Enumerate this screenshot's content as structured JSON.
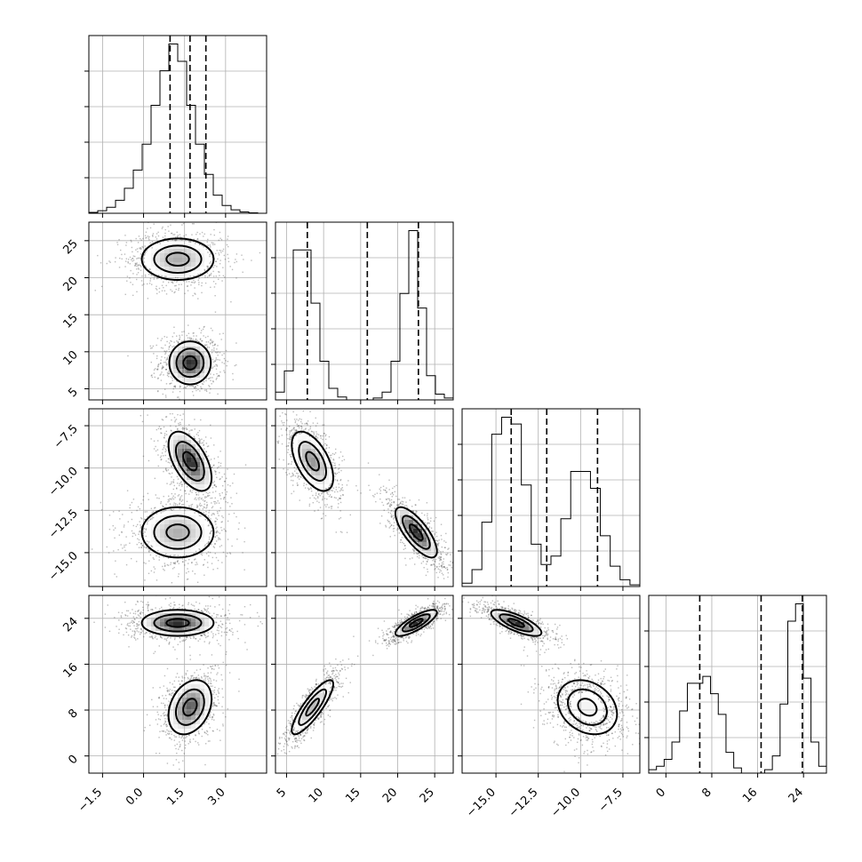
{
  "chart_data": {
    "type": "corner",
    "grid": true,
    "parameters": [
      {
        "range": [
          -2.0,
          4.5
        ],
        "ticks": [
          -1.5,
          0.0,
          1.5,
          3.0
        ],
        "tick_labels": [
          "−1.5",
          "0.0",
          "1.5",
          "3.0"
        ],
        "quantiles": [
          0.97,
          1.7,
          2.28
        ],
        "hist_counts": [
          2,
          6,
          14,
          30,
          58,
          100,
          160,
          250,
          330,
          392,
          352,
          250,
          160,
          90,
          42,
          18,
          8,
          3,
          1,
          0
        ]
      },
      {
        "range": [
          3.5,
          27.5
        ],
        "ticks": [
          5,
          10,
          15,
          20,
          25
        ],
        "tick_labels": [
          "5",
          "10",
          "15",
          "20",
          "25"
        ],
        "quantiles": [
          7.8,
          15.9,
          22.8
        ],
        "hist_counts": [
          8,
          30,
          155,
          155,
          100,
          40,
          12,
          3,
          0,
          0,
          0,
          2,
          8,
          40,
          110,
          175,
          95,
          25,
          6,
          2
        ]
      },
      {
        "range": [
          -17.0,
          -6.5
        ],
        "ticks": [
          -15.0,
          -12.5,
          -10.0,
          -7.5
        ],
        "tick_labels": [
          "−15.0",
          "−12.5",
          "−10.0",
          "−7.5"
        ],
        "quantiles": [
          -14.1,
          -12.0,
          -9.0
        ],
        "hist_counts": [
          2,
          10,
          38,
          90,
          100,
          96,
          60,
          25,
          13,
          18,
          40,
          68,
          68,
          58,
          30,
          12,
          4,
          1
        ]
      },
      {
        "range": [
          -3.0,
          28.0
        ],
        "ticks": [
          0,
          8,
          16,
          24
        ],
        "tick_labels": [
          "0",
          "8",
          "16",
          "24"
        ],
        "quantiles": [
          5.9,
          16.6,
          23.8
        ],
        "hist_counts": [
          2,
          4,
          8,
          18,
          36,
          52,
          52,
          56,
          46,
          34,
          12,
          3,
          0,
          0,
          0,
          2,
          10,
          40,
          88,
          98,
          55,
          18,
          4
        ],
        "extra_ticks": [
          -1,
          3,
          13,
          16,
          20
        ]
      }
    ],
    "y_ticks": {
      "1": {
        "ticks": [
          5,
          10,
          15,
          20,
          25
        ],
        "labels": [
          "5",
          "10",
          "15",
          "20",
          "25"
        ]
      },
      "2": {
        "ticks": [
          -15.0,
          -12.5,
          -10.0,
          -7.5
        ],
        "labels": [
          "−15.0",
          "−12.5",
          "−10.0",
          "−7.5"
        ]
      },
      "3": {
        "ticks": [
          0,
          8,
          16,
          24
        ],
        "labels": [
          "0",
          "8",
          "16",
          "24"
        ]
      }
    },
    "modes": [
      {
        "weight": 0.5,
        "mean": [
          1.7,
          8.5,
          -9.6,
          8.5
        ],
        "sd": [
          0.45,
          1.6,
          1.0,
          2.7
        ]
      },
      {
        "weight": 0.5,
        "mean": [
          1.25,
          22.5,
          -13.8,
          23.2
        ],
        "sd": [
          0.75,
          1.6,
          0.85,
          1.3
        ]
      }
    ],
    "pairs": [
      {
        "row": 1,
        "col": 0,
        "rho": [
          0.0,
          0.0
        ]
      },
      {
        "row": 2,
        "col": 0,
        "rho": [
          -0.55,
          0.0
        ]
      },
      {
        "row": 2,
        "col": 1,
        "rho": [
          -0.55,
          -0.75
        ]
      },
      {
        "row": 3,
        "col": 0,
        "rho": [
          0.3,
          0.0
        ]
      },
      {
        "row": 3,
        "col": 1,
        "rho": [
          0.85,
          0.8
        ]
      },
      {
        "row": 3,
        "col": 2,
        "rho": [
          -0.25,
          -0.75
        ]
      }
    ]
  }
}
